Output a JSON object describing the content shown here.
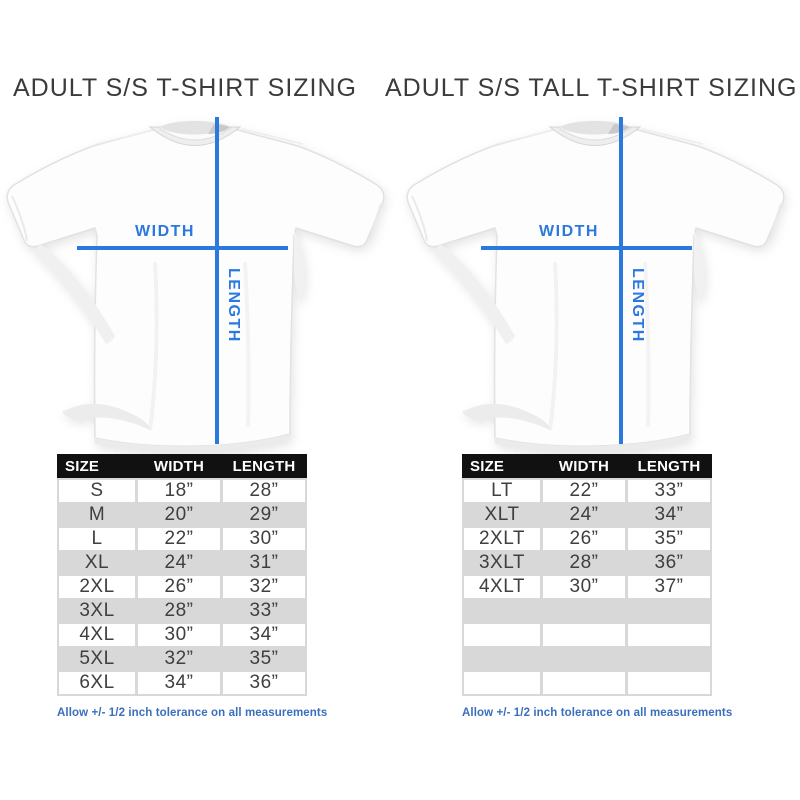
{
  "colors": {
    "accent_blue": "#2b79de",
    "note_blue": "#3a6fbe",
    "table_header_bg": "#111111",
    "table_header_text": "#ffffff",
    "row_alt_gray": "#d8d8d8",
    "title_text": "#3b3b3b",
    "cell_text": "#3f3f3f"
  },
  "diagram_labels": {
    "width": "WIDTH",
    "length": "LENGTH"
  },
  "note": "Allow +/- 1/2 inch tolerance on all measurements",
  "chart_data": [
    {
      "type": "table",
      "title": "ADULT S/S T-SHIRT SIZING",
      "columns": [
        "SIZE",
        "WIDTH",
        "LENGTH"
      ],
      "rows": [
        [
          "S",
          "18”",
          "28”"
        ],
        [
          "M",
          "20”",
          "29”"
        ],
        [
          "L",
          "22”",
          "30”"
        ],
        [
          "XL",
          "24”",
          "31”"
        ],
        [
          "2XL",
          "26”",
          "32”"
        ],
        [
          "3XL",
          "28”",
          "33”"
        ],
        [
          "4XL",
          "30”",
          "34”"
        ],
        [
          "5XL",
          "32”",
          "35”"
        ],
        [
          "6XL",
          "34”",
          "36”"
        ]
      ],
      "empty_rows": 0
    },
    {
      "type": "table",
      "title": "ADULT S/S TALL T-SHIRT SIZING",
      "columns": [
        "SIZE",
        "WIDTH",
        "LENGTH"
      ],
      "rows": [
        [
          "LT",
          "22”",
          "33”"
        ],
        [
          "XLT",
          "24”",
          "34”"
        ],
        [
          "2XLT",
          "26”",
          "35”"
        ],
        [
          "3XLT",
          "28”",
          "36”"
        ],
        [
          "4XLT",
          "30”",
          "37”"
        ]
      ],
      "empty_rows": 4
    }
  ]
}
